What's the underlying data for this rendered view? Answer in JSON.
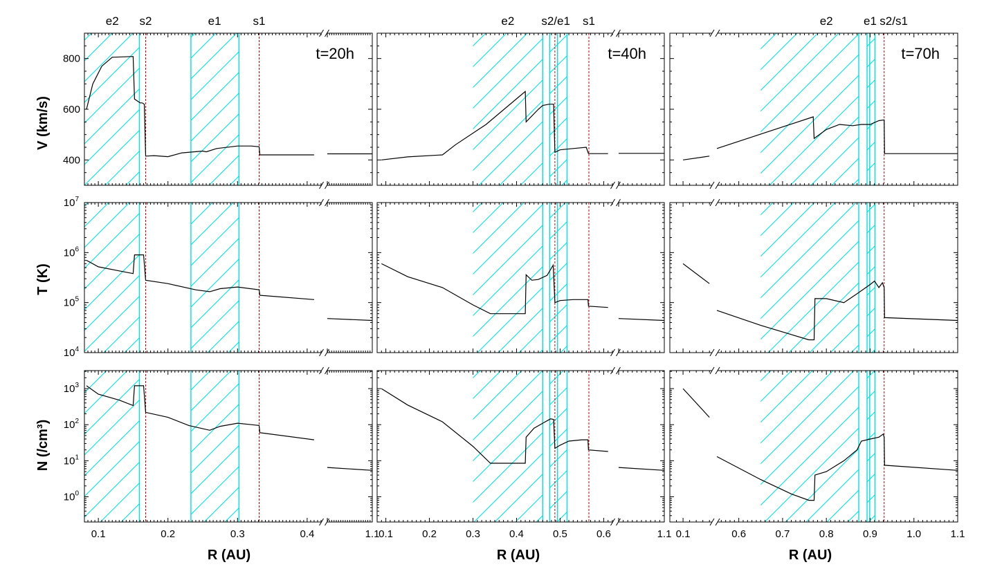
{
  "chart_data": {
    "type": "line",
    "x_label": "R (AU)",
    "row_labels": [
      "V (km/s)",
      "T (K)",
      "N (/cm³)"
    ],
    "colors": {
      "hatch": "#00e0e0",
      "shock_line": "#cc0000",
      "curve": "#000000"
    },
    "columns": [
      {
        "time_label": "t=20h",
        "xticks": [
          "0.1",
          "0.2",
          "0.3",
          "0.4",
          "1.1"
        ],
        "regions": [
          {
            "from": 0.08,
            "to": 0.159
          },
          {
            "from": 0.233,
            "to": 0.302
          }
        ],
        "cyan_lines": [
          0.159,
          0.233,
          0.302
        ],
        "shock_lines": [
          0.168,
          0.331
        ],
        "top_labels": [
          {
            "text": "e2",
            "x": 0.12
          },
          {
            "text": "s2",
            "x": 0.168
          },
          {
            "text": "e1",
            "x": 0.267
          },
          {
            "text": "s1",
            "x": 0.331
          }
        ],
        "V": [
          [
            [
              0.083,
              600
            ],
            [
              0.092,
              700
            ],
            [
              0.105,
              770
            ],
            [
              0.12,
              805
            ],
            [
              0.15,
              808
            ],
            [
              0.152,
              640
            ],
            [
              0.16,
              625
            ],
            [
              0.163,
              625
            ],
            [
              0.166,
              620
            ],
            [
              0.168,
              415
            ],
            [
              0.18,
              417
            ],
            [
              0.2,
              413
            ],
            [
              0.22,
              428
            ],
            [
              0.25,
              435
            ],
            [
              0.255,
              432
            ],
            [
              0.27,
              445
            ],
            [
              0.3,
              455
            ],
            [
              0.32,
              455
            ],
            [
              0.331,
              452
            ],
            [
              0.332,
              420
            ],
            [
              0.41,
              420
            ]
          ],
          [
            [
              1.0,
              424
            ],
            [
              1.1,
              424
            ]
          ]
        ],
        "T": [
          [
            [
              0.083,
              700000
            ],
            [
              0.1,
              520000
            ],
            [
              0.13,
              430000
            ],
            [
              0.15,
              380000
            ],
            [
              0.152,
              900000
            ],
            [
              0.165,
              900000
            ],
            [
              0.168,
              280000
            ],
            [
              0.2,
              240000
            ],
            [
              0.24,
              180000
            ],
            [
              0.26,
              165000
            ],
            [
              0.275,
              190000
            ],
            [
              0.3,
              205000
            ],
            [
              0.331,
              180000
            ],
            [
              0.332,
              140000
            ],
            [
              0.41,
              115000
            ]
          ],
          [
            [
              1.0,
              48000
            ],
            [
              1.1,
              44000
            ]
          ]
        ],
        "N": [
          [
            [
              0.083,
              1200
            ],
            [
              0.1,
              700
            ],
            [
              0.13,
              480
            ],
            [
              0.15,
              340
            ],
            [
              0.152,
              1200
            ],
            [
              0.165,
              1200
            ],
            [
              0.168,
              220
            ],
            [
              0.2,
              160
            ],
            [
              0.23,
              95
            ],
            [
              0.26,
              70
            ],
            [
              0.275,
              90
            ],
            [
              0.3,
              110
            ],
            [
              0.32,
              100
            ],
            [
              0.331,
              95
            ],
            [
              0.332,
              60
            ],
            [
              0.41,
              38
            ]
          ],
          [
            [
              1.0,
              6.5
            ],
            [
              1.1,
              5.4
            ]
          ]
        ]
      },
      {
        "time_label": "t=40h",
        "xticks": [
          "0.1",
          "0.2",
          "0.3",
          "0.4",
          "0.5",
          "0.6",
          "1.1"
        ],
        "regions": [
          {
            "from": 0.3,
            "to": 0.46
          },
          {
            "from": 0.476,
            "to": 0.516
          }
        ],
        "cyan_lines": [
          0.46,
          0.476,
          0.494,
          0.516
        ],
        "shock_lines": [
          0.488,
          0.566
        ],
        "top_labels": [
          {
            "text": "e2",
            "x": 0.38
          },
          {
            "text": "s2/e1",
            "x": 0.49
          },
          {
            "text": "s1",
            "x": 0.566
          }
        ],
        "V": [
          [
            [
              0.09,
              400
            ],
            [
              0.15,
              412
            ],
            [
              0.23,
              420
            ],
            [
              0.26,
              460
            ],
            [
              0.33,
              540
            ],
            [
              0.42,
              670
            ],
            [
              0.422,
              550
            ],
            [
              0.45,
              600
            ],
            [
              0.46,
              615
            ],
            [
              0.475,
              620
            ],
            [
              0.485,
              620
            ],
            [
              0.488,
              430
            ],
            [
              0.5,
              440
            ],
            [
              0.53,
              445
            ],
            [
              0.56,
              450
            ],
            [
              0.565,
              425
            ],
            [
              0.61,
              425
            ]
          ],
          [
            [
              1.0,
              426
            ],
            [
              1.1,
              426
            ]
          ]
        ],
        "T": [
          [
            [
              0.09,
              600000
            ],
            [
              0.15,
              330000
            ],
            [
              0.23,
              200000
            ],
            [
              0.3,
              90000
            ],
            [
              0.34,
              60000
            ],
            [
              0.42,
              60000
            ],
            [
              0.422,
              360000
            ],
            [
              0.435,
              280000
            ],
            [
              0.45,
              290000
            ],
            [
              0.47,
              350000
            ],
            [
              0.484,
              560000
            ],
            [
              0.488,
              100000
            ],
            [
              0.5,
              110000
            ],
            [
              0.53,
              115000
            ],
            [
              0.564,
              115000
            ],
            [
              0.565,
              85000
            ],
            [
              0.61,
              80000
            ]
          ],
          [
            [
              1.0,
              48000
            ],
            [
              1.1,
              44000
            ]
          ]
        ],
        "N": [
          [
            [
              0.09,
              1000
            ],
            [
              0.15,
              350
            ],
            [
              0.23,
              120
            ],
            [
              0.3,
              25
            ],
            [
              0.34,
              8.5
            ],
            [
              0.42,
              8.5
            ],
            [
              0.422,
              45
            ],
            [
              0.44,
              80
            ],
            [
              0.46,
              110
            ],
            [
              0.478,
              145
            ],
            [
              0.485,
              140
            ],
            [
              0.488,
              22
            ],
            [
              0.5,
              27
            ],
            [
              0.52,
              35
            ],
            [
              0.55,
              38
            ],
            [
              0.564,
              38
            ],
            [
              0.565,
              20
            ],
            [
              0.61,
              18
            ]
          ],
          [
            [
              1.0,
              6.5
            ],
            [
              1.1,
              5.4
            ]
          ]
        ]
      },
      {
        "time_label": "t=70h",
        "xticks": [
          "0.1",
          "0.6",
          "0.7",
          "0.8",
          "0.9",
          "1.0",
          "1.1"
        ],
        "regions": [
          {
            "from": 0.65,
            "to": 0.874
          },
          {
            "from": 0.893,
            "to": 0.911
          }
        ],
        "cyan_lines": [
          0.874,
          0.893,
          0.899,
          0.911
        ],
        "shock_lines": [
          0.932
        ],
        "top_labels": [
          {
            "text": "e2",
            "x": 0.8
          },
          {
            "text": "e1",
            "x": 0.9
          },
          {
            "text": "s2/s1",
            "x": 0.954
          }
        ],
        "V": [
          [
            [
              0.1,
              400
            ],
            [
              0.14,
              415
            ]
          ],
          [
            [
              0.55,
              445
            ],
            [
              0.77,
              570
            ],
            [
              0.772,
              485
            ],
            [
              0.8,
              520
            ],
            [
              0.83,
              540
            ],
            [
              0.86,
              535
            ],
            [
              0.88,
              540
            ],
            [
              0.9,
              540
            ],
            [
              0.92,
              555
            ],
            [
              0.932,
              558
            ],
            [
              0.933,
              425
            ],
            [
              1.1,
              425
            ]
          ]
        ],
        "T": [
          [
            [
              0.1,
              600000
            ],
            [
              0.14,
              240000
            ]
          ],
          [
            [
              0.55,
              70000
            ],
            [
              0.65,
              35000
            ],
            [
              0.76,
              18000
            ],
            [
              0.772,
              18000
            ],
            [
              0.774,
              120000
            ],
            [
              0.8,
              120000
            ],
            [
              0.84,
              100000
            ],
            [
              0.87,
              150000
            ],
            [
              0.9,
              230000
            ],
            [
              0.91,
              270000
            ],
            [
              0.92,
              200000
            ],
            [
              0.928,
              250000
            ],
            [
              0.932,
              200000
            ],
            [
              0.933,
              50000
            ],
            [
              1.1,
              44000
            ]
          ]
        ],
        "N": [
          [
            [
              0.1,
              1000
            ],
            [
              0.14,
              160
            ]
          ],
          [
            [
              0.55,
              13
            ],
            [
              0.65,
              3
            ],
            [
              0.72,
              1.2
            ],
            [
              0.76,
              0.8
            ],
            [
              0.772,
              0.8
            ],
            [
              0.774,
              4
            ],
            [
              0.8,
              5
            ],
            [
              0.84,
              10
            ],
            [
              0.87,
              20
            ],
            [
              0.88,
              35
            ],
            [
              0.9,
              40
            ],
            [
              0.92,
              45
            ],
            [
              0.93,
              55
            ],
            [
              0.932,
              45
            ],
            [
              0.933,
              7.5
            ],
            [
              1.1,
              5.4
            ]
          ]
        ]
      }
    ]
  }
}
